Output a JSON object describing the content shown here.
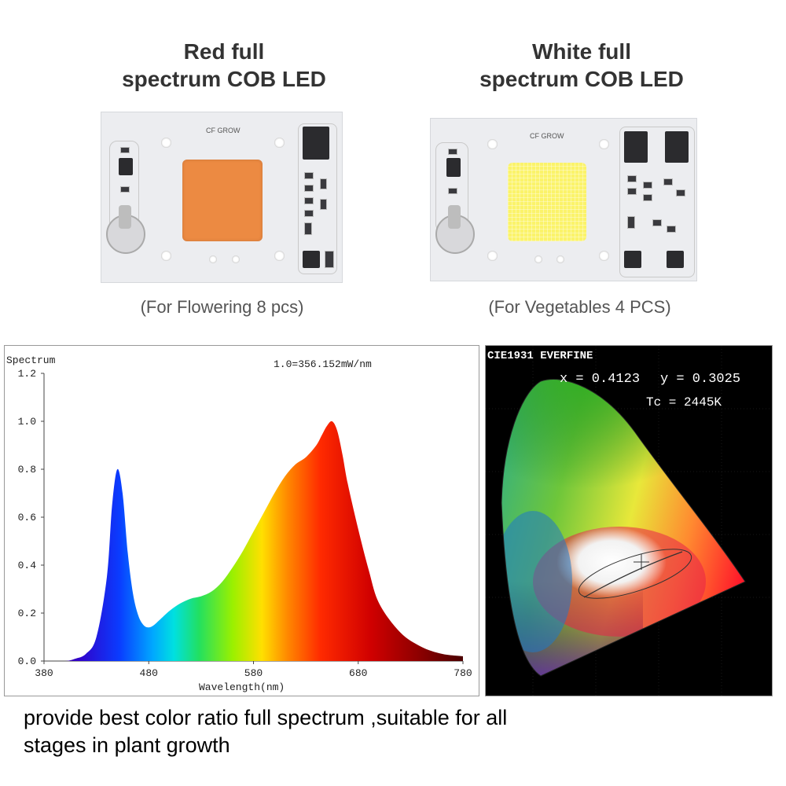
{
  "products": [
    {
      "title_line1": "Red full",
      "title_line2": "spectrum COB LED",
      "chip_label": "CF GROW",
      "caption": "(For Flowering 8 pcs)",
      "emitter_color": "#ec8a42"
    },
    {
      "title_line1": "White full",
      "title_line2": "spectrum COB LED",
      "chip_label": "CF GROW",
      "caption": "(For Vegetables 4 PCS)",
      "emitter_color": "#fbf36a"
    }
  ],
  "chart_data": [
    {
      "type": "area",
      "title": "1.0=356.152mW/nm",
      "ylabel": "Spectrum",
      "xlabel": "Wavelength(nm)",
      "xlim": [
        380,
        780
      ],
      "ylim": [
        0,
        1.2
      ],
      "x_ticks": [
        "380",
        "480",
        "580",
        "680",
        "780"
      ],
      "y_ticks": [
        "0.0",
        "0.2",
        "0.4",
        "0.6",
        "0.8",
        "1.0",
        "1.2"
      ],
      "grid": false,
      "fill": "visible-spectrum gradient",
      "x": [
        380,
        400,
        410,
        420,
        430,
        440,
        445,
        450,
        455,
        460,
        465,
        470,
        475,
        480,
        485,
        490,
        500,
        510,
        520,
        530,
        540,
        550,
        560,
        570,
        580,
        590,
        600,
        610,
        620,
        630,
        640,
        645,
        650,
        655,
        660,
        665,
        670,
        680,
        690,
        700,
        720,
        740,
        760,
        780
      ],
      "y": [
        0.0,
        0.0,
        0.01,
        0.03,
        0.1,
        0.35,
        0.65,
        0.8,
        0.7,
        0.45,
        0.28,
        0.19,
        0.15,
        0.14,
        0.15,
        0.17,
        0.21,
        0.24,
        0.26,
        0.27,
        0.29,
        0.33,
        0.39,
        0.46,
        0.54,
        0.62,
        0.7,
        0.77,
        0.82,
        0.85,
        0.9,
        0.94,
        0.98,
        1.0,
        0.96,
        0.86,
        0.74,
        0.55,
        0.38,
        0.24,
        0.12,
        0.06,
        0.03,
        0.02
      ]
    },
    {
      "type": "scatter",
      "title": "CIE1931 EVERFINE",
      "annotations": [
        "x = 0.4123",
        "y = 0.3025",
        "Tc = 2445K"
      ],
      "x": [
        0.4123
      ],
      "y": [
        0.3025
      ],
      "xlim": [
        0,
        0.8
      ],
      "ylim": [
        0,
        0.9
      ]
    }
  ],
  "bottom_text": {
    "line1": "provide best color ratio full spectrum ,suitable for all",
    "line2": "stages in plant growth"
  }
}
